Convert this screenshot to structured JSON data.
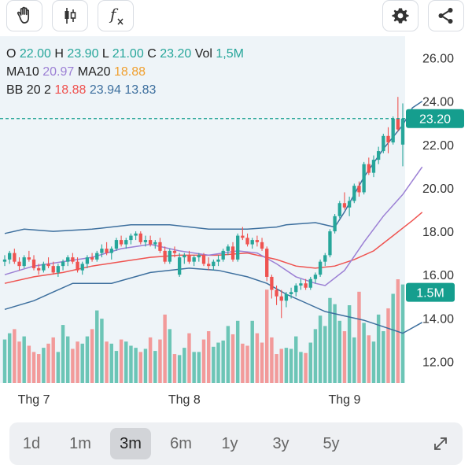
{
  "toolbar": {
    "icons": [
      "hand-icon",
      "candlestick-icon",
      "function-icon",
      "gear-icon",
      "share-icon"
    ],
    "function_label": "f"
  },
  "legend": {
    "open_label": "O",
    "open": "22.00",
    "high_label": "H",
    "high": "23.90",
    "low_label": "L",
    "low": "21.00",
    "close_label": "C",
    "close": "23.20",
    "vol_label": "Vol",
    "vol": "1,5M",
    "ma10_label": "MA10",
    "ma10": "20.97",
    "ma20_label": "MA20",
    "ma20": "18.88",
    "bb_label": "BB 20 2",
    "bb_mid": "18.88",
    "bb_upper": "23.94",
    "bb_lower": "13.83"
  },
  "price_tag": "23.20",
  "volume_tag": "1.5M",
  "ranges": [
    "1d",
    "1m",
    "3m",
    "6m",
    "1y",
    "3y",
    "5y"
  ],
  "active_range": "3m",
  "colors": {
    "up": "#26a69a",
    "down": "#ef5350",
    "vol_up": "#6cc5b6",
    "vol_down": "#f29a9a",
    "bb": "#3d6f9e",
    "ma10": "#9b7fd4",
    "ma20": "#ef5350",
    "plot_bg": "#eef4f8",
    "last_price": "#159e8e"
  },
  "chart_data": {
    "type": "candlestick",
    "y_ticks": [
      "26.00",
      "24.00",
      "22.00",
      "20.00",
      "18.00",
      "16.00",
      "14.00",
      "12.00"
    ],
    "ylim": [
      11,
      27
    ],
    "x_labels": [
      {
        "label": "Thg 7",
        "index": 6
      },
      {
        "label": "Thg 8",
        "index": 37
      },
      {
        "label": "Thg 9",
        "index": 70
      }
    ],
    "last_price": 23.2,
    "candles": [
      [
        16.6,
        16.9,
        16.4,
        16.7
      ],
      [
        16.7,
        17.1,
        16.5,
        17.0
      ],
      [
        17.0,
        17.2,
        16.5,
        16.6
      ],
      [
        16.6,
        16.8,
        16.2,
        16.4
      ],
      [
        16.4,
        16.9,
        16.3,
        16.8
      ],
      [
        16.8,
        17.1,
        16.6,
        16.7
      ],
      [
        16.7,
        16.9,
        16.2,
        16.3
      ],
      [
        16.3,
        16.5,
        16.0,
        16.2
      ],
      [
        16.2,
        16.6,
        16.1,
        16.5
      ],
      [
        16.5,
        16.8,
        16.3,
        16.4
      ],
      [
        16.4,
        16.6,
        16.0,
        16.1
      ],
      [
        16.1,
        16.5,
        15.9,
        16.4
      ],
      [
        16.4,
        16.7,
        16.2,
        16.6
      ],
      [
        16.6,
        16.9,
        16.4,
        16.8
      ],
      [
        16.8,
        17.0,
        16.5,
        16.6
      ],
      [
        16.6,
        16.8,
        16.1,
        16.2
      ],
      [
        16.2,
        16.6,
        16.0,
        16.5
      ],
      [
        16.5,
        16.9,
        16.3,
        16.8
      ],
      [
        16.8,
        17.0,
        16.6,
        16.7
      ],
      [
        16.7,
        17.1,
        16.6,
        17.0
      ],
      [
        17.0,
        17.4,
        16.8,
        17.2
      ],
      [
        17.2,
        17.5,
        16.9,
        17.0
      ],
      [
        17.0,
        17.3,
        16.7,
        17.2
      ],
      [
        17.2,
        17.7,
        17.1,
        17.6
      ],
      [
        17.6,
        17.8,
        17.3,
        17.4
      ],
      [
        17.4,
        17.7,
        17.2,
        17.6
      ],
      [
        17.6,
        17.9,
        17.4,
        17.8
      ],
      [
        17.8,
        18.0,
        17.6,
        17.9
      ],
      [
        17.9,
        18.0,
        17.4,
        17.5
      ],
      [
        17.5,
        17.8,
        17.3,
        17.6
      ],
      [
        17.6,
        17.8,
        17.3,
        17.4
      ],
      [
        17.4,
        17.6,
        17.2,
        17.5
      ],
      [
        17.5,
        17.7,
        17.0,
        17.1
      ],
      [
        17.1,
        17.3,
        16.5,
        16.6
      ],
      [
        16.6,
        17.2,
        16.5,
        17.1
      ],
      [
        17.1,
        17.3,
        16.8,
        17.0
      ],
      [
        16.0,
        17.0,
        15.9,
        16.8
      ],
      [
        16.8,
        17.0,
        16.5,
        16.9
      ],
      [
        16.9,
        17.1,
        16.5,
        16.6
      ],
      [
        16.6,
        16.9,
        16.4,
        16.8
      ],
      [
        16.8,
        17.0,
        16.6,
        16.9
      ],
      [
        16.9,
        17.0,
        16.4,
        16.5
      ],
      [
        16.5,
        16.8,
        16.2,
        16.4
      ],
      [
        16.4,
        16.7,
        16.2,
        16.6
      ],
      [
        16.6,
        16.9,
        16.4,
        16.7
      ],
      [
        16.7,
        17.2,
        16.6,
        17.1
      ],
      [
        17.1,
        17.4,
        16.9,
        17.3
      ],
      [
        17.3,
        17.5,
        16.6,
        16.7
      ],
      [
        16.7,
        17.9,
        16.6,
        17.8
      ],
      [
        17.8,
        18.2,
        17.6,
        17.7
      ],
      [
        17.7,
        17.9,
        17.3,
        17.4
      ],
      [
        17.4,
        17.7,
        17.2,
        17.6
      ],
      [
        17.6,
        17.8,
        17.3,
        17.5
      ],
      [
        17.5,
        17.7,
        17.1,
        17.2
      ],
      [
        17.2,
        17.3,
        15.7,
        15.9
      ],
      [
        15.9,
        16.0,
        14.9,
        15.3
      ],
      [
        15.3,
        15.5,
        14.6,
        15.0
      ],
      [
        15.0,
        15.3,
        14.0,
        14.8
      ],
      [
        14.8,
        15.2,
        14.5,
        15.1
      ],
      [
        15.1,
        15.4,
        14.9,
        15.2
      ],
      [
        15.2,
        15.6,
        15.0,
        15.5
      ],
      [
        15.5,
        15.8,
        15.3,
        15.6
      ],
      [
        15.6,
        15.8,
        15.3,
        15.4
      ],
      [
        15.4,
        15.9,
        15.3,
        15.8
      ],
      [
        15.8,
        16.1,
        15.6,
        16.0
      ],
      [
        16.0,
        16.7,
        15.9,
        16.6
      ],
      [
        16.6,
        17.0,
        16.4,
        16.9
      ],
      [
        16.9,
        18.1,
        16.8,
        18.0
      ],
      [
        18.0,
        18.8,
        17.9,
        18.7
      ],
      [
        18.7,
        19.4,
        18.6,
        19.3
      ],
      [
        19.3,
        19.8,
        19.0,
        19.1
      ],
      [
        19.1,
        19.6,
        18.7,
        19.4
      ],
      [
        19.4,
        20.2,
        19.3,
        20.1
      ],
      [
        20.1,
        20.3,
        19.6,
        19.8
      ],
      [
        19.8,
        21.2,
        19.7,
        21.1
      ],
      [
        21.1,
        21.4,
        20.6,
        20.7
      ],
      [
        20.7,
        21.5,
        20.5,
        21.3
      ],
      [
        21.3,
        21.9,
        21.1,
        21.7
      ],
      [
        21.7,
        22.5,
        21.6,
        22.4
      ],
      [
        22.4,
        22.8,
        21.6,
        22.1
      ],
      [
        22.1,
        23.3,
        22.0,
        23.2
      ],
      [
        23.2,
        24.2,
        22.6,
        22.7
      ],
      [
        22.0,
        23.9,
        21.0,
        23.2
      ]
    ],
    "volume_ratio": [
      0.42,
      0.48,
      0.52,
      0.4,
      0.45,
      0.36,
      0.3,
      0.28,
      0.34,
      0.38,
      0.44,
      0.3,
      0.56,
      0.45,
      0.33,
      0.4,
      0.38,
      0.45,
      0.52,
      0.7,
      0.62,
      0.4,
      0.38,
      0.31,
      0.42,
      0.4,
      0.36,
      0.34,
      0.3,
      0.33,
      0.44,
      0.31,
      0.42,
      0.66,
      0.52,
      0.28,
      0.27,
      0.34,
      0.48,
      0.3,
      0.3,
      0.42,
      0.5,
      0.35,
      0.39,
      0.41,
      0.55,
      0.47,
      0.6,
      0.38,
      0.36,
      0.6,
      0.48,
      0.39,
      0.9,
      0.44,
      0.28,
      0.33,
      0.34,
      0.33,
      0.45,
      0.3,
      0.29,
      0.39,
      0.52,
      0.65,
      0.55,
      0.82,
      0.76,
      0.6,
      0.5,
      0.75,
      0.44,
      0.88,
      0.58,
      0.46,
      0.4,
      0.66,
      0.5,
      0.72,
      0.86,
      1.0,
      0.95
    ],
    "bb_upper": [
      [
        0,
        17.9
      ],
      [
        4,
        18.1
      ],
      [
        10,
        18.0
      ],
      [
        18,
        18.1
      ],
      [
        26,
        18.3
      ],
      [
        34,
        18.3
      ],
      [
        42,
        18.1
      ],
      [
        50,
        18.1
      ],
      [
        56,
        18.2
      ],
      [
        58,
        18.3
      ],
      [
        64,
        18.4
      ],
      [
        68,
        18.2
      ],
      [
        70,
        18.9
      ],
      [
        74,
        20.5
      ],
      [
        78,
        21.8
      ],
      [
        82,
        22.9
      ],
      [
        84,
        23.7
      ],
      [
        86,
        24.0
      ]
    ],
    "bb_lower": [
      [
        0,
        14.4
      ],
      [
        6,
        14.8
      ],
      [
        10,
        15.2
      ],
      [
        14,
        15.6
      ],
      [
        22,
        15.6
      ],
      [
        30,
        16.1
      ],
      [
        38,
        16.3
      ],
      [
        44,
        16.2
      ],
      [
        50,
        15.9
      ],
      [
        54,
        15.6
      ],
      [
        58,
        15.1
      ],
      [
        62,
        14.7
      ],
      [
        66,
        14.3
      ],
      [
        70,
        14.1
      ],
      [
        74,
        13.9
      ],
      [
        78,
        13.6
      ],
      [
        82,
        13.3
      ],
      [
        86,
        13.8
      ]
    ],
    "ma10": [
      [
        0,
        16.0
      ],
      [
        6,
        16.4
      ],
      [
        12,
        16.6
      ],
      [
        18,
        16.8
      ],
      [
        24,
        17.2
      ],
      [
        30,
        17.4
      ],
      [
        36,
        17.1
      ],
      [
        42,
        16.9
      ],
      [
        48,
        17.1
      ],
      [
        52,
        17.0
      ],
      [
        56,
        16.5
      ],
      [
        60,
        15.9
      ],
      [
        64,
        15.6
      ],
      [
        66,
        15.5
      ],
      [
        70,
        16.2
      ],
      [
        74,
        17.5
      ],
      [
        78,
        18.7
      ],
      [
        82,
        19.7
      ],
      [
        86,
        20.97
      ]
    ],
    "ma20": [
      [
        0,
        15.6
      ],
      [
        6,
        15.9
      ],
      [
        12,
        16.1
      ],
      [
        18,
        16.4
      ],
      [
        24,
        16.6
      ],
      [
        30,
        16.8
      ],
      [
        36,
        16.9
      ],
      [
        44,
        16.9
      ],
      [
        50,
        17.0
      ],
      [
        56,
        16.7
      ],
      [
        60,
        16.4
      ],
      [
        64,
        16.3
      ],
      [
        68,
        16.4
      ],
      [
        72,
        16.7
      ],
      [
        76,
        17.1
      ],
      [
        80,
        17.8
      ],
      [
        84,
        18.5
      ],
      [
        86,
        18.88
      ]
    ]
  }
}
